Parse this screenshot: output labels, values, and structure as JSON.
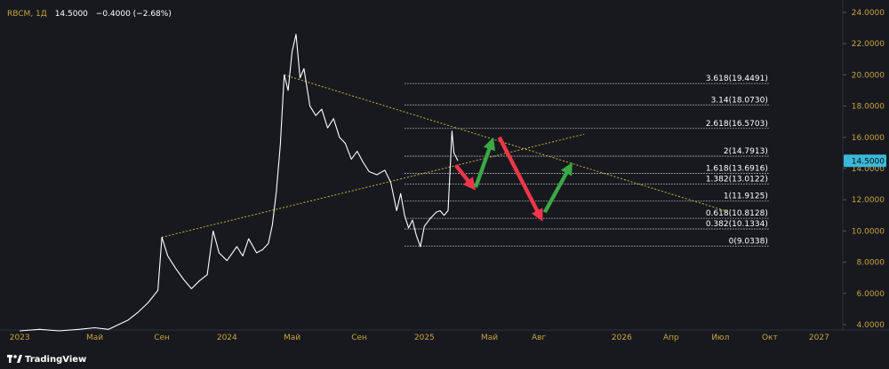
{
  "header": {
    "symbol": "RBCM, 1Д",
    "price": "14.5000",
    "change": "−0.4000 (−2.68%)"
  },
  "footer": {
    "brand": "TradingView"
  },
  "colors": {
    "background": "#17191f",
    "price_line": "#ffffff",
    "axis_text": "#c9a23c",
    "trendline": "#c7b53a",
    "fib_line": "#d0d0d0",
    "price_badge": "#3bb9d8",
    "arrow_down": "#f0364a",
    "arrow_up": "#3aa845"
  },
  "chart_data": {
    "type": "line",
    "symbol": "RBCM",
    "timeframe": "1Д",
    "last_price": 14.5,
    "ylim": [
      4.0,
      24.0
    ],
    "y_ticks": [
      "4.0000",
      "6.0000",
      "8.0000",
      "10.0000",
      "12.0000",
      "14.0000",
      "16.0000",
      "18.0000",
      "20.0000",
      "22.0000",
      "24.0000"
    ],
    "x_ticks": [
      {
        "label": "2023",
        "t": 2022.95
      },
      {
        "label": "Май",
        "t": 2023.33
      },
      {
        "label": "Сен",
        "t": 2023.67
      },
      {
        "label": "2024",
        "t": 2024.0
      },
      {
        "label": "Май",
        "t": 2024.33
      },
      {
        "label": "Сен",
        "t": 2024.67
      },
      {
        "label": "2025",
        "t": 2025.0
      },
      {
        "label": "Май",
        "t": 2025.33
      },
      {
        "label": "Авг",
        "t": 2025.58
      },
      {
        "label": "2026",
        "t": 2026.0
      },
      {
        "label": "Апр",
        "t": 2026.25
      },
      {
        "label": "Июл",
        "t": 2026.5
      },
      {
        "label": "Окт",
        "t": 2026.75
      },
      {
        "label": "2027",
        "t": 2027.0
      }
    ],
    "series": [
      {
        "points": [
          [
            2022.95,
            3.6
          ],
          [
            2023.05,
            3.7
          ],
          [
            2023.15,
            3.6
          ],
          [
            2023.25,
            3.7
          ],
          [
            2023.33,
            3.8
          ],
          [
            2023.4,
            3.7
          ],
          [
            2023.45,
            4.0
          ],
          [
            2023.5,
            4.3
          ],
          [
            2023.55,
            4.8
          ],
          [
            2023.6,
            5.4
          ],
          [
            2023.65,
            6.2
          ],
          [
            2023.67,
            9.6
          ],
          [
            2023.7,
            8.4
          ],
          [
            2023.74,
            7.6
          ],
          [
            2023.78,
            6.9
          ],
          [
            2023.82,
            6.3
          ],
          [
            2023.86,
            6.8
          ],
          [
            2023.9,
            7.2
          ],
          [
            2023.93,
            10.0
          ],
          [
            2023.96,
            8.6
          ],
          [
            2024.0,
            8.1
          ],
          [
            2024.05,
            9.0
          ],
          [
            2024.08,
            8.4
          ],
          [
            2024.11,
            9.5
          ],
          [
            2024.15,
            8.6
          ],
          [
            2024.18,
            8.8
          ],
          [
            2024.21,
            9.2
          ],
          [
            2024.23,
            10.4
          ],
          [
            2024.25,
            12.5
          ],
          [
            2024.27,
            15.5
          ],
          [
            2024.29,
            20.0
          ],
          [
            2024.31,
            19.0
          ],
          [
            2024.33,
            21.5
          ],
          [
            2024.35,
            22.6
          ],
          [
            2024.37,
            19.8
          ],
          [
            2024.39,
            20.4
          ],
          [
            2024.42,
            18.0
          ],
          [
            2024.45,
            17.4
          ],
          [
            2024.48,
            17.8
          ],
          [
            2024.51,
            16.6
          ],
          [
            2024.54,
            17.2
          ],
          [
            2024.57,
            16.0
          ],
          [
            2024.6,
            15.6
          ],
          [
            2024.63,
            14.6
          ],
          [
            2024.66,
            15.1
          ],
          [
            2024.69,
            14.4
          ],
          [
            2024.72,
            13.8
          ],
          [
            2024.76,
            13.6
          ],
          [
            2024.8,
            13.9
          ],
          [
            2024.83,
            13.1
          ],
          [
            2024.86,
            11.3
          ],
          [
            2024.88,
            12.4
          ],
          [
            2024.9,
            11.0
          ],
          [
            2024.92,
            10.2
          ],
          [
            2024.94,
            10.7
          ],
          [
            2024.96,
            9.7
          ],
          [
            2024.98,
            9.0
          ],
          [
            2025.0,
            10.3
          ],
          [
            2025.03,
            10.8
          ],
          [
            2025.06,
            11.2
          ],
          [
            2025.08,
            11.3
          ],
          [
            2025.1,
            11.0
          ],
          [
            2025.12,
            11.3
          ],
          [
            2025.13,
            13.8
          ],
          [
            2025.14,
            16.4
          ],
          [
            2025.15,
            15.0
          ],
          [
            2025.17,
            14.5
          ]
        ]
      }
    ],
    "trendlines": [
      {
        "from": [
          2023.67,
          9.6
        ],
        "to": [
          2025.81,
          16.2
        ]
      },
      {
        "from": [
          2024.29,
          20.0
        ],
        "to": [
          2026.55,
          11.2
        ]
      }
    ],
    "fibonacci_levels": [
      {
        "label": "3.618(19.4491)",
        "value": 19.4491
      },
      {
        "label": "3.14(18.0730)",
        "value": 18.073
      },
      {
        "label": "2.618(16.5703)",
        "value": 16.5703
      },
      {
        "label": "2(14.7913)",
        "value": 14.7913
      },
      {
        "label": "1.618(13.6916)",
        "value": 13.6916
      },
      {
        "label": "1.382(13.0122)",
        "value": 13.0122
      },
      {
        "label": "1(11.9125)",
        "value": 11.9125
      },
      {
        "label": "0.618(10.8128)",
        "value": 10.8128
      },
      {
        "label": "0.382(10.1334)",
        "value": 10.1334
      },
      {
        "label": "0(9.0338)",
        "value": 9.0338
      }
    ],
    "fib_range": [
      2024.9,
      2026.75
    ],
    "projection_arrows": [
      {
        "direction": "down",
        "from": [
          2025.16,
          14.2
        ],
        "to": [
          2025.26,
          12.6
        ]
      },
      {
        "direction": "up",
        "from": [
          2025.26,
          12.8
        ],
        "to": [
          2025.35,
          16.0
        ]
      },
      {
        "direction": "down",
        "from": [
          2025.38,
          16.0
        ],
        "to": [
          2025.6,
          10.6
        ]
      },
      {
        "direction": "up",
        "from": [
          2025.61,
          11.2
        ],
        "to": [
          2025.75,
          14.4
        ]
      }
    ]
  }
}
